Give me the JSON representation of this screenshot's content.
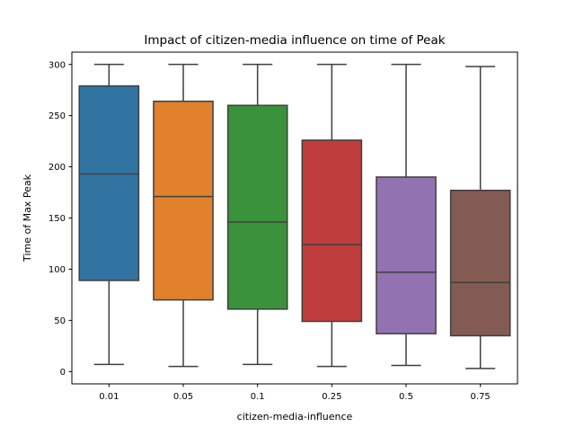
{
  "chart_data": {
    "type": "box",
    "title": "Impact of citizen-media influence on time of Peak",
    "xlabel": "citizen-media-influence",
    "ylabel": "Time of Max Peak",
    "ylim": [
      -12,
      312
    ],
    "yticks": [
      0,
      50,
      100,
      150,
      200,
      250,
      300
    ],
    "grid": false,
    "categories": [
      "0.01",
      "0.05",
      "0.1",
      "0.25",
      "0.5",
      "0.75"
    ],
    "boxes": [
      {
        "category": "0.01",
        "whisker_low": 7,
        "q1": 89,
        "median": 193,
        "q3": 279,
        "whisker_high": 300,
        "color": "#3274a1"
      },
      {
        "category": "0.05",
        "whisker_low": 5,
        "q1": 70,
        "median": 171,
        "q3": 264,
        "whisker_high": 300,
        "color": "#e1812c"
      },
      {
        "category": "0.1",
        "whisker_low": 7,
        "q1": 61,
        "median": 146,
        "q3": 260,
        "whisker_high": 300,
        "color": "#3a923a"
      },
      {
        "category": "0.25",
        "whisker_low": 5,
        "q1": 49,
        "median": 124,
        "q3": 226,
        "whisker_high": 300,
        "color": "#c03d3e"
      },
      {
        "category": "0.5",
        "whisker_low": 6,
        "q1": 37,
        "median": 97,
        "q3": 190,
        "whisker_high": 300,
        "color": "#9372b2"
      },
      {
        "category": "0.75",
        "whisker_low": 3,
        "q1": 35,
        "median": 87,
        "q3": 177,
        "whisker_high": 298,
        "color": "#845b53"
      }
    ],
    "line_color": "#3f3f3f"
  }
}
